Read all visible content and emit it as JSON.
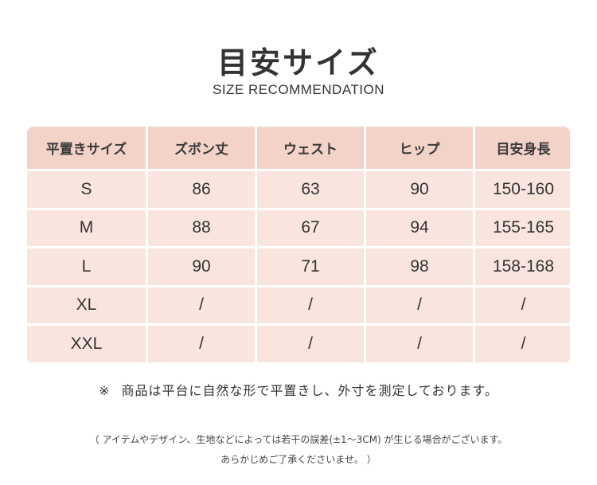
{
  "title": "目安サイズ",
  "subtitle": "SIZE RECOMMENDATION",
  "table": {
    "headers": [
      "平置きサイズ",
      "ズボン丈",
      "ウェスト",
      "ヒップ",
      "目安身長"
    ],
    "rows": [
      [
        "S",
        "86",
        "63",
        "90",
        "150-160"
      ],
      [
        "M",
        "88",
        "67",
        "94",
        "155-165"
      ],
      [
        "L",
        "90",
        "71",
        "98",
        "158-168"
      ],
      [
        "XL",
        "/",
        "/",
        "/",
        "/"
      ],
      [
        "XXL",
        "/",
        "/",
        "/",
        "/"
      ]
    ]
  },
  "note": {
    "mark": "※",
    "text": "商品は平台に自然な形で平置きし、外寸を測定しております。"
  },
  "disclaimer": {
    "line1": "（ アイテムやデザイン、生地などによっては若干の誤差(±1～3CM) が生じる場合がございます。",
    "line2": "あらかじめご了承くださいませ。 ）"
  },
  "colors": {
    "header_bg": "#f3d2c8",
    "cell_bg": "#f9e5de",
    "text": "#333333"
  }
}
